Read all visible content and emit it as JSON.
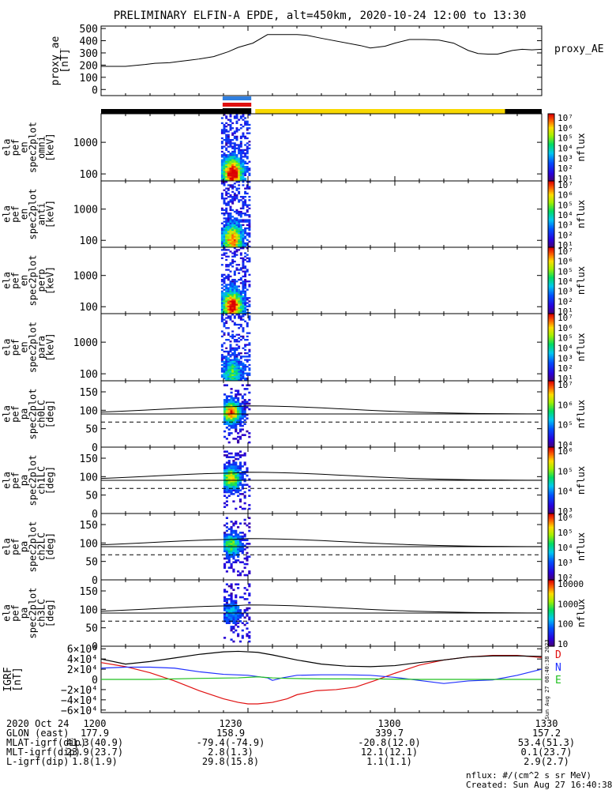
{
  "title": "PRELIMINARY ELFIN-A EPDE, alt=450km, 2020-10-24 12:00 to 13:30",
  "time_range": {
    "start_min": 0,
    "end_min": 90
  },
  "colors": {
    "black": "#000000",
    "bar_black": "#000000",
    "bar_yellow": "#f8d800",
    "bar_blue": "#2f7fe0",
    "bar_red": "#e01010",
    "bx": "#e01010",
    "by": "#2030ff",
    "bz": "#20c020",
    "mag": "#000000",
    "label_D": "#e01010",
    "label_N": "#2030ff",
    "label_E": "#20c020"
  },
  "chart_data": [
    {
      "id": "proxy_ae",
      "type": "line",
      "ylabel": "proxy_ae\n[nT]",
      "side_label": "proxy_AE",
      "yticks": [
        "500",
        "400",
        "300",
        "200",
        "100",
        "0"
      ],
      "ylim": [
        -50,
        520
      ],
      "x": [
        0,
        2,
        5,
        9,
        11,
        14,
        16,
        18,
        20,
        23,
        26,
        28,
        31,
        34,
        40,
        42,
        45,
        53,
        55,
        58,
        60,
        63,
        66,
        69,
        72,
        75,
        77,
        79,
        81,
        84,
        86,
        88,
        90
      ],
      "y": [
        190,
        190,
        190,
        205,
        215,
        220,
        230,
        240,
        250,
        270,
        310,
        345,
        380,
        450,
        450,
        445,
        420,
        360,
        340,
        355,
        380,
        410,
        410,
        405,
        380,
        320,
        295,
        290,
        290,
        320,
        330,
        325,
        330
      ]
    },
    {
      "id": "ephemeris_bars",
      "type": "bar",
      "segments": [
        {
          "name": "black",
          "start_min": 0,
          "end_min": 25,
          "color": "bar_black"
        },
        {
          "name": "yellow",
          "start_min": 31.5,
          "end_min": 82.5,
          "color": "bar_yellow"
        },
        {
          "name": "black2",
          "start_min": 82.5,
          "end_min": 90,
          "color": "bar_black"
        }
      ],
      "science_zone_min": [
        24.5,
        31.0
      ]
    },
    {
      "id": "en_omni",
      "type": "heatmap",
      "ylabel": [
        "ela",
        "pef",
        "en",
        "spec2plot",
        "omni",
        "[keV]"
      ],
      "yticks": [
        "1000",
        "100"
      ],
      "ylog": true,
      "ylim": [
        60,
        8000
      ],
      "colorbar": {
        "ticks": [
          "10⁷",
          "10⁶",
          "10⁵",
          "10⁴",
          "10³",
          "10²",
          "10¹"
        ],
        "label": "nflux"
      }
    },
    {
      "id": "en_anti",
      "type": "heatmap",
      "ylabel": [
        "ela",
        "pef",
        "en",
        "spec2plot",
        "anti",
        "[keV]"
      ],
      "yticks": [
        "1000",
        "100"
      ],
      "ylog": true,
      "ylim": [
        60,
        8000
      ],
      "colorbar": {
        "ticks": [
          "10⁷",
          "10⁶",
          "10⁵",
          "10⁴",
          "10³",
          "10²",
          "10¹"
        ],
        "label": "nflux"
      }
    },
    {
      "id": "en_perp",
      "type": "heatmap",
      "ylabel": [
        "ela",
        "pef",
        "en",
        "spec2plot",
        "perp",
        "[keV]"
      ],
      "yticks": [
        "1000",
        "100"
      ],
      "ylog": true,
      "ylim": [
        60,
        8000
      ],
      "colorbar": {
        "ticks": [
          "10⁷",
          "10⁶",
          "10⁵",
          "10⁴",
          "10³",
          "10²",
          "10¹"
        ],
        "label": "nflux"
      }
    },
    {
      "id": "en_para",
      "type": "heatmap",
      "ylabel": [
        "ela",
        "pef",
        "en",
        "spec2plot",
        "para",
        "[keV]"
      ],
      "yticks": [
        "1000",
        "100"
      ],
      "ylog": true,
      "ylim": [
        60,
        8000
      ],
      "colorbar": {
        "ticks": [
          "10⁷",
          "10⁶",
          "10⁵",
          "10⁴",
          "10³",
          "10²",
          "10¹"
        ],
        "label": "nflux"
      }
    },
    {
      "id": "pa_ch0",
      "type": "heatmap",
      "ylabel": [
        "ela",
        "pef",
        "pa",
        "spec2plot",
        "ch0LC",
        "[deg]"
      ],
      "yticks": [
        "150",
        "100",
        "50",
        "0"
      ],
      "ylim": [
        0,
        180
      ],
      "colorbar": {
        "ticks": [
          "10⁷",
          "10⁶",
          "10⁵",
          "10⁴"
        ],
        "label": "nflux"
      }
    },
    {
      "id": "pa_ch1",
      "type": "heatmap",
      "ylabel": [
        "ela",
        "pef",
        "pa",
        "spec2plot",
        "ch1LC",
        "[deg]"
      ],
      "yticks": [
        "150",
        "100",
        "50",
        "0"
      ],
      "ylim": [
        0,
        180
      ],
      "colorbar": {
        "ticks": [
          "10⁶",
          "10⁵",
          "10⁴",
          "10³"
        ],
        "label": "nflux"
      }
    },
    {
      "id": "pa_ch2",
      "type": "heatmap",
      "ylabel": [
        "ela",
        "pef",
        "pa",
        "spec2plot",
        "ch2LC",
        "[deg]"
      ],
      "yticks": [
        "150",
        "100",
        "50",
        "0"
      ],
      "ylim": [
        0,
        180
      ],
      "colorbar": {
        "ticks": [
          "10⁶",
          "10⁵",
          "10⁴",
          "10³",
          "10²"
        ],
        "label": "nflux"
      }
    },
    {
      "id": "pa_ch3",
      "type": "heatmap",
      "ylabel": [
        "ela",
        "pef",
        "pa",
        "spec2plot",
        "ch3LC",
        "[deg]"
      ],
      "yticks": [
        "150",
        "100",
        "50",
        "0"
      ],
      "ylim": [
        0,
        180
      ],
      "colorbar": {
        "ticks": [
          "10000",
          "1000",
          "100",
          "10"
        ],
        "label": "nflux"
      }
    },
    {
      "id": "igrf",
      "type": "line",
      "ylabel": "IGRF\n[nT]",
      "yticks": [
        "6×10⁴",
        "4×10⁴",
        "2×10⁴",
        "0",
        "−2×10⁴",
        "−4×10⁴",
        "−6×10⁴"
      ],
      "ylim": [
        -65000,
        65000
      ],
      "legend": [
        "D",
        "N",
        "E"
      ],
      "series": [
        {
          "name": "D",
          "color": "bx",
          "x": [
            0,
            5,
            10,
            15,
            20,
            25,
            28,
            30,
            32,
            35,
            38,
            40,
            44,
            48,
            52,
            56,
            60,
            65,
            70,
            75,
            80,
            85,
            90
          ],
          "y": [
            33000,
            25000,
            13000,
            -3000,
            -22000,
            -38000,
            -45000,
            -48000,
            -48000,
            -45000,
            -38000,
            -30000,
            -22000,
            -20000,
            -15000,
            -2000,
            12000,
            28000,
            38000,
            44000,
            47000,
            47000,
            43000
          ]
        },
        {
          "name": "N",
          "color": "by",
          "x": [
            0,
            5,
            10,
            15,
            20,
            25,
            30,
            34,
            35,
            37,
            40,
            45,
            50,
            55,
            60,
            65,
            70,
            75,
            80,
            85,
            90
          ],
          "y": [
            22000,
            24000,
            24000,
            22000,
            15000,
            10000,
            8000,
            3000,
            -2000,
            3000,
            8000,
            9000,
            9000,
            8000,
            4000,
            -2000,
            -8000,
            -3000,
            -1000,
            8000,
            20000
          ]
        },
        {
          "name": "E",
          "color": "bz",
          "x": [
            0,
            10,
            20,
            28,
            32,
            35,
            38,
            45,
            55,
            65,
            75,
            90
          ],
          "y": [
            0,
            0,
            2000,
            3000,
            5000,
            3000,
            2000,
            1000,
            1000,
            0,
            0,
            0
          ]
        },
        {
          "name": "|B|",
          "color": "mag",
          "x": [
            0,
            5,
            10,
            15,
            20,
            25,
            28,
            32,
            35,
            40,
            45,
            50,
            55,
            60,
            65,
            70,
            75,
            80,
            85,
            90
          ],
          "y": [
            40000,
            30000,
            35000,
            42000,
            49000,
            54000,
            55000,
            53000,
            48000,
            38000,
            30000,
            26000,
            25000,
            27000,
            33000,
            38000,
            44000,
            46000,
            46000,
            45000
          ]
        }
      ]
    }
  ],
  "xaxis": {
    "ticks": [
      "1200",
      "1230",
      "1300",
      "1330"
    ],
    "tick_min": [
      0,
      30,
      60,
      90
    ]
  },
  "footer": {
    "rows": [
      {
        "label": "2020 Oct 24",
        "v": [
          "1200",
          "1230",
          "1300",
          "1330"
        ]
      },
      {
        "label": "GLON (east)",
        "v": [
          "177.9",
          "158.9",
          "339.7",
          "157.2"
        ]
      },
      {
        "label": "MLAT-igrf(dip)",
        "v": [
          "41.3(40.9)",
          "-79.4(-74.9)",
          "-20.8(12.0)",
          "53.4(51.3)"
        ]
      },
      {
        "label": "MLT-igrf(dip)",
        "v": [
          "23.9(23.7)",
          "2.8(1.3)",
          "12.1(12.1)",
          "0.1(23.7)"
        ]
      },
      {
        "label": "L-igrf(dip)",
        "v": [
          "1.8(1.9)",
          "29.8(15.8)",
          "1.1(1.1)",
          "2.9(2.7)"
        ]
      }
    ],
    "units": "nflux: #/(cm^2 s sr MeV)",
    "created": "Created: Sun Aug 27 16:40:38 2023",
    "side_stamp": "Sun Aug 27 08:40:38 2023"
  }
}
